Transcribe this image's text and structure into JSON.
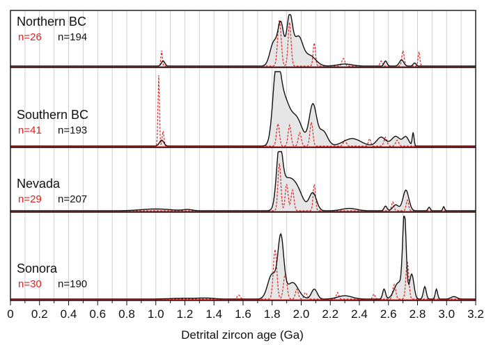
{
  "chart_data": {
    "type": "area",
    "xlabel": "Detrital zircon age (Ga)",
    "xlim": [
      0,
      3.2
    ],
    "x_ticks": [
      "0",
      "0.2",
      "0.4",
      "0.6",
      "0.8",
      "1.0",
      "1.2",
      "1.4",
      "1.6",
      "1.8",
      "2.0",
      "2.2",
      "2.4",
      "2.6",
      "2.8",
      "3.0",
      "3.2"
    ],
    "grid": "vertical lines every 0.1 Ga",
    "colors": {
      "black_series": "#111111",
      "red_series": "#e02020",
      "fill": "#e6e6e6",
      "grid": "#cfcfcf"
    },
    "panels": [
      {
        "name": "Northern BC",
        "n_black": "n=194",
        "n_red": "n=26",
        "black_peaks": [
          [
            1.05,
            0.1,
            0.012
          ],
          [
            1.81,
            0.45,
            0.025
          ],
          [
            1.86,
            0.8,
            0.02
          ],
          [
            1.92,
            0.95,
            0.02
          ],
          [
            1.98,
            0.55,
            0.03
          ],
          [
            2.06,
            0.2,
            0.04
          ],
          [
            2.3,
            0.04,
            0.05
          ],
          [
            2.58,
            0.1,
            0.01
          ],
          [
            2.69,
            0.12,
            0.015
          ],
          [
            2.78,
            0.06,
            0.01
          ]
        ],
        "red_peaks": [
          [
            1.04,
            0.3,
            0.005
          ],
          [
            1.85,
            0.9,
            0.012
          ],
          [
            1.92,
            0.85,
            0.01
          ],
          [
            2.09,
            0.45,
            0.008
          ],
          [
            2.29,
            0.15,
            0.01
          ],
          [
            2.55,
            0.1,
            0.008
          ],
          [
            2.7,
            0.3,
            0.008
          ],
          [
            2.81,
            0.28,
            0.006
          ]
        ]
      },
      {
        "name": "Southern BC",
        "n_black": "n=193",
        "n_red": "n=41",
        "black_peaks": [
          [
            1.04,
            0.08,
            0.015
          ],
          [
            1.83,
            0.9,
            0.025
          ],
          [
            1.88,
            0.6,
            0.04
          ],
          [
            1.97,
            0.35,
            0.04
          ],
          [
            2.08,
            0.55,
            0.025
          ],
          [
            2.15,
            0.2,
            0.03
          ],
          [
            2.35,
            0.1,
            0.06
          ],
          [
            2.55,
            0.12,
            0.03
          ],
          [
            2.65,
            0.13,
            0.03
          ],
          [
            2.72,
            0.12,
            0.02
          ],
          [
            2.77,
            0.18,
            0.006
          ]
        ],
        "red_peaks": [
          [
            1.02,
            0.95,
            0.005
          ],
          [
            1.05,
            0.2,
            0.006
          ],
          [
            1.84,
            0.3,
            0.01
          ],
          [
            1.92,
            0.28,
            0.01
          ],
          [
            1.99,
            0.18,
            0.01
          ],
          [
            2.07,
            0.32,
            0.01
          ],
          [
            2.3,
            0.08,
            0.01
          ],
          [
            2.47,
            0.1,
            0.008
          ],
          [
            2.58,
            0.12,
            0.01
          ],
          [
            2.66,
            0.08,
            0.01
          ]
        ]
      },
      {
        "name": "Nevada",
        "n_black": "n=207",
        "n_red": "n=29",
        "black_peaks": [
          [
            1.0,
            0.03,
            0.1
          ],
          [
            1.22,
            0.02,
            0.03
          ],
          [
            1.85,
            0.95,
            0.02
          ],
          [
            1.9,
            0.45,
            0.04
          ],
          [
            1.97,
            0.35,
            0.04
          ],
          [
            2.08,
            0.3,
            0.025
          ],
          [
            2.33,
            0.04,
            0.05
          ],
          [
            2.58,
            0.08,
            0.01
          ],
          [
            2.65,
            0.1,
            0.02
          ],
          [
            2.72,
            0.35,
            0.02
          ],
          [
            2.88,
            0.06,
            0.008
          ],
          [
            2.98,
            0.07,
            0.006
          ]
        ],
        "red_peaks": [
          [
            1.85,
            0.8,
            0.01
          ],
          [
            1.9,
            0.45,
            0.01
          ],
          [
            1.94,
            0.35,
            0.01
          ],
          [
            2.09,
            0.45,
            0.008
          ],
          [
            2.63,
            0.15,
            0.008
          ],
          [
            2.73,
            0.18,
            0.008
          ]
        ]
      },
      {
        "name": "Sonora",
        "n_black": "n=190",
        "n_red": "n=30",
        "black_peaks": [
          [
            1.2,
            0.01,
            0.1
          ],
          [
            1.35,
            0.01,
            0.05
          ],
          [
            1.8,
            0.3,
            0.03
          ],
          [
            1.86,
            0.72,
            0.02
          ],
          [
            1.94,
            0.2,
            0.04
          ],
          [
            2.09,
            0.12,
            0.02
          ],
          [
            2.3,
            0.04,
            0.05
          ],
          [
            2.57,
            0.12,
            0.01
          ],
          [
            2.67,
            0.2,
            0.03
          ],
          [
            2.71,
            0.98,
            0.012
          ],
          [
            2.76,
            0.3,
            0.015
          ],
          [
            2.85,
            0.15,
            0.01
          ],
          [
            2.93,
            0.12,
            0.008
          ],
          [
            3.05,
            0.03,
            0.02
          ]
        ],
        "red_peaks": [
          [
            1.57,
            0.05,
            0.01
          ],
          [
            1.82,
            0.6,
            0.012
          ],
          [
            1.89,
            0.3,
            0.012
          ],
          [
            1.97,
            0.12,
            0.01
          ],
          [
            2.03,
            0.08,
            0.01
          ],
          [
            2.25,
            0.08,
            0.008
          ],
          [
            2.5,
            0.06,
            0.008
          ],
          [
            2.64,
            0.18,
            0.01
          ],
          [
            2.73,
            0.45,
            0.01
          ]
        ]
      }
    ]
  }
}
